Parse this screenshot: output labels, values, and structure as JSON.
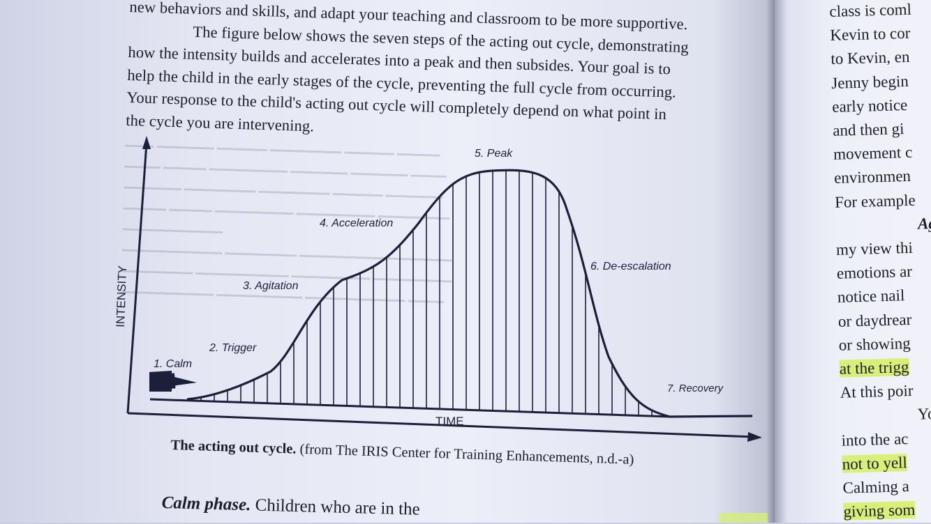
{
  "left_page": {
    "lines": [
      "new behaviors and skills, and adapt your teaching and classroom to be more supportive.",
      "The figure below shows the seven steps of the acting out cycle, demonstrating",
      "how the intensity builds and accelerates into a peak and then subsides. Your goal is to",
      "help the child in the early stages of the cycle, preventing the full cycle from occurring.",
      "Your response to the child's acting out cycle will completely depend on what point in",
      "the cycle you are intervening."
    ],
    "caption_bold": "The acting out cycle.",
    "caption_rest": " (from The IRIS Center for Training Enhancements, n.d.-a)",
    "next_heading": "Calm phase.",
    "next_text": " Children who are in the"
  },
  "figure": {
    "y_axis_label": "INTENSITY",
    "x_axis_label": "TIME",
    "stages": [
      "1. Calm",
      "2. Trigger",
      "3. Agitation",
      "4. Acceleration",
      "5. Peak",
      "6. De-escalation",
      "7. Recovery"
    ],
    "colors": {
      "ink": "#1c1f3a"
    }
  },
  "right_page": {
    "lines": [
      "class is coml",
      "Kevin to cor",
      "to Kevin, en",
      "Jenny begin",
      "early notice",
      "and then gi",
      "movement c",
      "environmen",
      "For example",
      "Ag",
      "my view thi",
      "emotions ar",
      "notice nail",
      "or daydrear",
      "or showing",
      "at the trigg",
      "At this poir",
      "You",
      "into the ac",
      "not to yell",
      "Calming a",
      "giving som"
    ],
    "highlight_color": "#d8f078"
  }
}
